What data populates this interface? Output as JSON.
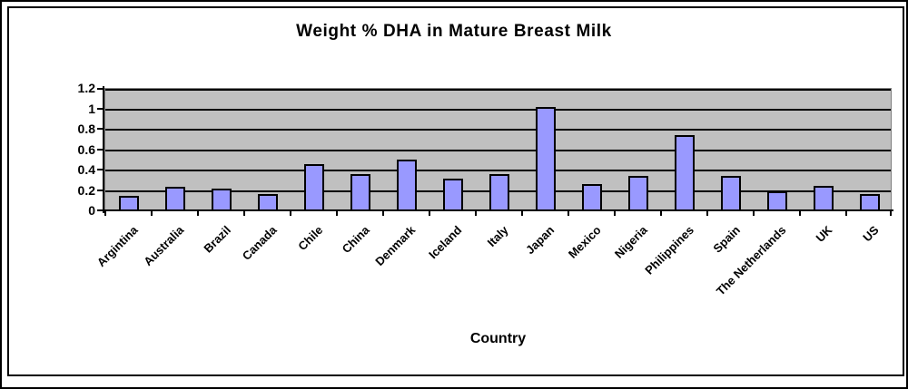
{
  "chart_data": {
    "type": "bar",
    "title": "Weight % DHA in Mature Breast Milk",
    "xlabel": "Country",
    "ylabel": "",
    "categories": [
      "Argintina",
      "Australia",
      "Brazil",
      "Canada",
      "Chile",
      "China",
      "Denmark",
      "Iceland",
      "Italy",
      "Japan",
      "Mexico",
      "Nigeria",
      "Philippines",
      "Spain",
      "The Netherlands",
      "UK",
      "US"
    ],
    "values": [
      0.13,
      0.22,
      0.2,
      0.15,
      0.44,
      0.35,
      0.49,
      0.3,
      0.35,
      1.0,
      0.25,
      0.33,
      0.73,
      0.33,
      0.18,
      0.23,
      0.15
    ],
    "ylim": [
      0,
      1.2
    ],
    "yticks": [
      0,
      0.2,
      0.4,
      0.6,
      0.8,
      1,
      1.2
    ],
    "ytick_labels": [
      "0",
      "0.2",
      "0.4",
      "0.6",
      "0.8",
      "1",
      "1.2"
    ],
    "grid": true,
    "legend": false,
    "bar_color": "#9999ff",
    "bar_border_color": "#000000",
    "plot_bg_color": "#c0c0c0",
    "gridline_color": "#000000",
    "text_color": "#000000"
  }
}
